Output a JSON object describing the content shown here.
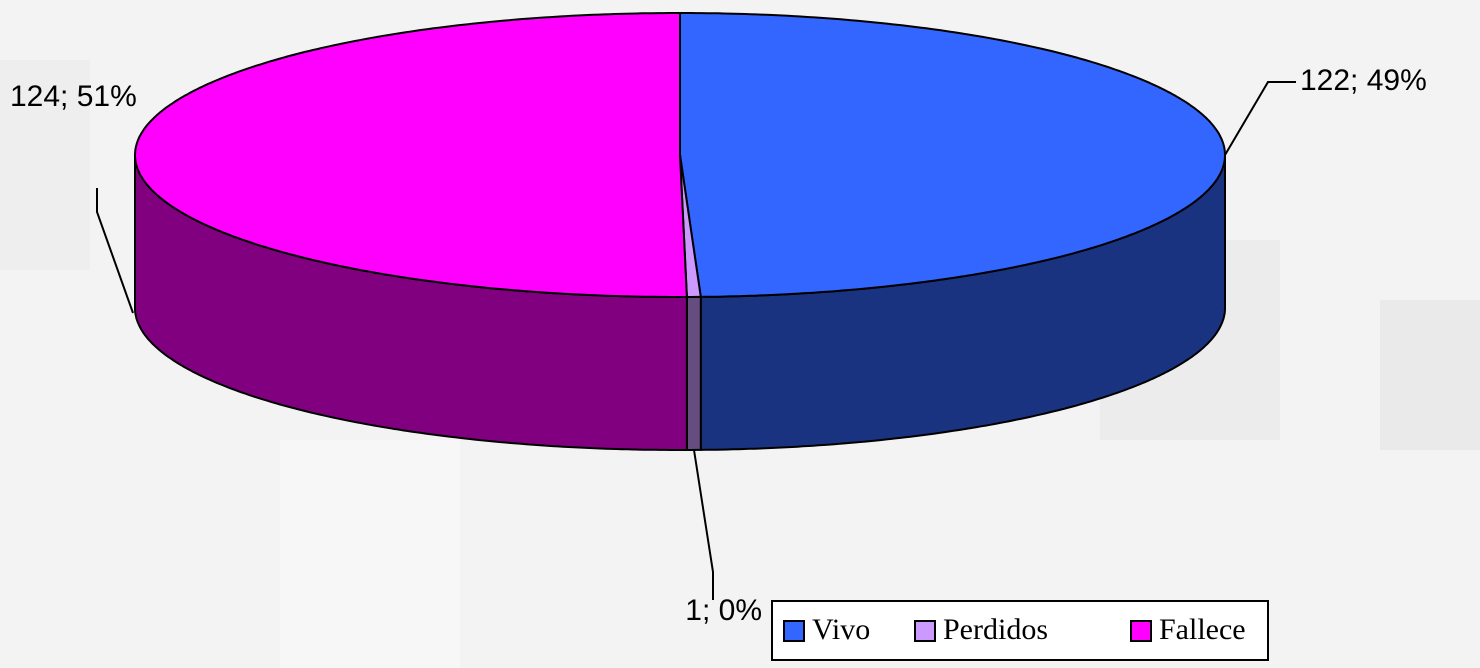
{
  "chart_data": {
    "type": "pie",
    "categories": [
      "Vivo",
      "Perdidos",
      "Fallece"
    ],
    "values": [
      122,
      1,
      124
    ],
    "value_labels": [
      "122; 49%",
      "1; 0%",
      "124; 51%"
    ],
    "colors": [
      "#3366ff",
      "#cc99ff",
      "#ff00ff"
    ],
    "legend": "bottom"
  }
}
